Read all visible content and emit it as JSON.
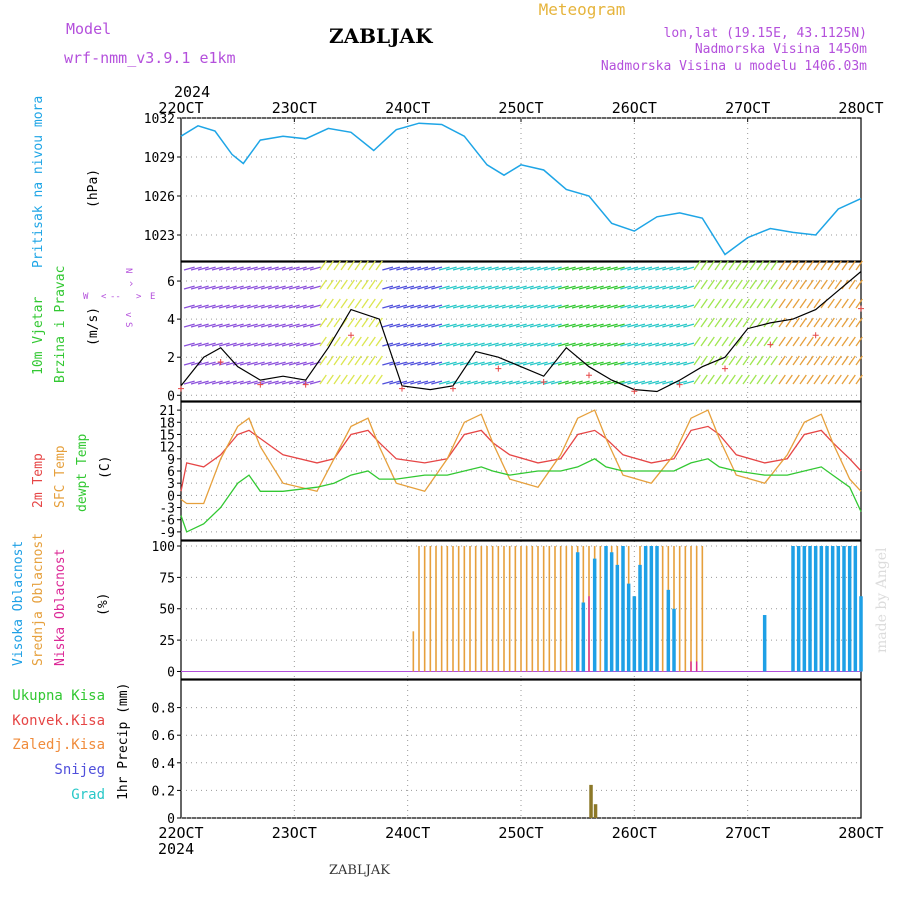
{
  "header": {
    "model_label": "Model",
    "model_name": "wrf-nmm_v3.9.1  e1km",
    "station_title": "ZABLJAK",
    "meteogram_label": "Meteogram",
    "coords": "lon,lat (19.15E, 43.1125N)",
    "altitude": "Nadmorska Visina 1450m",
    "model_altitude": "Nadmorska Visina u modelu 1406.03m",
    "bottom_station": "ZABLJAK",
    "watermark": "made by Angel"
  },
  "time_axis": {
    "year": "2024",
    "labels": [
      "22OCT",
      "23OCT",
      "24OCT",
      "25OCT",
      "26OCT",
      "27OCT",
      "28OCT"
    ]
  },
  "colors": {
    "pressure": "#1ea5e6",
    "temp2m": "#e64646",
    "sfc_temp": "#e6a03c",
    "dewpt": "#32c832",
    "high_cloud": "#1ea0e6",
    "mid_cloud": "#e6a03c",
    "low_cloud": "#dc2896",
    "total_precip": "#32c832",
    "conv_precip": "#e64646",
    "frozen_precip": "#f08c3c",
    "snow": "#5050dc",
    "hail": "#28c8c8",
    "precip_bar": "#8c7828",
    "wind_line": "#000000",
    "gust_mark": "#e64646",
    "compass": "#b450dc"
  },
  "chart_data": [
    {
      "id": "pressure",
      "type": "line",
      "ylabel": "(hPa)",
      "side_label": "Pritisak na nivou mora",
      "ylim": [
        1021,
        1032
      ],
      "yticks": [
        1023,
        1026,
        1029,
        1032
      ],
      "x": [
        22.0,
        22.15,
        22.3,
        22.45,
        22.55,
        22.7,
        22.9,
        23.1,
        23.3,
        23.5,
        23.7,
        23.9,
        24.1,
        24.3,
        24.5,
        24.7,
        24.85,
        25.0,
        25.2,
        25.4,
        25.6,
        25.8,
        26.0,
        26.2,
        26.4,
        26.6,
        26.8,
        27.0,
        27.2,
        27.4,
        27.6,
        27.8,
        28.0
      ],
      "values": [
        1030.6,
        1031.4,
        1031.0,
        1029.2,
        1028.5,
        1030.3,
        1030.6,
        1030.4,
        1031.2,
        1030.9,
        1029.5,
        1031.1,
        1031.6,
        1031.5,
        1030.6,
        1028.4,
        1027.6,
        1028.4,
        1028.0,
        1026.5,
        1026.0,
        1023.9,
        1023.3,
        1024.4,
        1024.7,
        1024.3,
        1021.5,
        1022.8,
        1023.5,
        1023.2,
        1023.0,
        1025.0,
        1025.8
      ]
    },
    {
      "id": "wind",
      "type": "line",
      "ylabel": "(m/s)",
      "side_label_1": "10m Vjetar",
      "side_label_2": "Brzina i Pravac",
      "compass": {
        "n": "N",
        "e": "E",
        "w": "W",
        "s": "S",
        "arrow_n": "^",
        "arrow_s": "v",
        "arrow_w": "<",
        "arrow_e": ">",
        "dash": "--"
      },
      "ylim": [
        -0.3,
        7
      ],
      "yticks": [
        0,
        2,
        4,
        6
      ],
      "x": [
        22.0,
        22.2,
        22.35,
        22.5,
        22.7,
        22.9,
        23.1,
        23.3,
        23.5,
        23.75,
        23.95,
        24.2,
        24.4,
        24.6,
        24.8,
        25.0,
        25.2,
        25.4,
        25.6,
        25.8,
        26.0,
        26.2,
        26.4,
        26.6,
        26.8,
        27.0,
        27.2,
        27.4,
        27.6,
        27.8,
        28.0
      ],
      "values": [
        0.5,
        2.0,
        2.5,
        1.5,
        0.8,
        1.0,
        0.8,
        2.5,
        4.5,
        4.0,
        0.5,
        0.3,
        0.5,
        2.3,
        2.0,
        1.5,
        1.0,
        2.5,
        1.5,
        0.8,
        0.3,
        0.2,
        0.8,
        1.5,
        2.0,
        3.5,
        3.8,
        4.0,
        4.5,
        5.5,
        6.5
      ],
      "direction_bands": [
        {
          "from": 22.0,
          "to": 23.2,
          "color": "#8c50dc"
        },
        {
          "from": 23.2,
          "to": 23.75,
          "color": "#dce650"
        },
        {
          "from": 23.75,
          "to": 24.25,
          "color": "#5050dc"
        },
        {
          "from": 24.25,
          "to": 25.3,
          "color": "#28c8c8"
        },
        {
          "from": 25.3,
          "to": 25.85,
          "color": "#32c832"
        },
        {
          "from": 25.85,
          "to": 26.5,
          "color": "#28c8c8"
        },
        {
          "from": 26.5,
          "to": 27.25,
          "color": "#a0e650"
        },
        {
          "from": 27.25,
          "to": 28.0,
          "color": "#e6a03c"
        }
      ]
    },
    {
      "id": "temperature",
      "type": "line",
      "ylabel": "(C)",
      "side_label_1": "2m Temp",
      "side_label_2": "SFC Temp",
      "side_label_3": "dewpt Temp",
      "ylim": [
        -11,
        23
      ],
      "yticks": [
        -9,
        -6,
        -3,
        0,
        3,
        6,
        9,
        12,
        15,
        18,
        21
      ],
      "x": [
        22.0,
        22.05,
        22.2,
        22.35,
        22.5,
        22.6,
        22.7,
        22.9,
        23.2,
        23.35,
        23.5,
        23.65,
        23.75,
        23.9,
        24.15,
        24.35,
        24.5,
        24.65,
        24.75,
        24.9,
        25.15,
        25.35,
        25.5,
        25.65,
        25.75,
        25.9,
        26.15,
        26.35,
        26.5,
        26.65,
        26.75,
        26.9,
        27.15,
        27.35,
        27.5,
        27.65,
        27.75,
        27.9,
        28.0
      ],
      "series": [
        {
          "name": "2m Temp",
          "values": [
            1,
            8,
            7,
            10,
            15,
            16,
            14,
            10,
            8,
            9,
            15,
            16,
            13,
            9,
            8,
            9,
            15,
            16,
            13,
            10,
            8,
            9,
            15,
            16,
            14,
            10,
            8,
            9,
            16,
            17,
            15,
            10,
            8,
            9,
            15,
            16,
            13,
            9,
            6
          ]
        },
        {
          "name": "SFC Temp",
          "values": [
            -1,
            -2,
            -2,
            9,
            17,
            19,
            12,
            3,
            1,
            9,
            17,
            19,
            12,
            3,
            1,
            9,
            18,
            20,
            13,
            4,
            2,
            10,
            19,
            21,
            14,
            5,
            3,
            10,
            19,
            21,
            14,
            5,
            3,
            10,
            18,
            20,
            13,
            4,
            1
          ]
        },
        {
          "name": "dewpt Temp",
          "values": [
            -5,
            -9,
            -7,
            -3,
            3,
            5,
            1,
            1,
            2,
            3,
            5,
            6,
            4,
            4,
            5,
            5,
            6,
            7,
            6,
            5,
            6,
            6,
            7,
            9,
            7,
            6,
            6,
            6,
            8,
            9,
            7,
            6,
            5,
            5,
            6,
            7,
            5,
            2,
            -4
          ]
        }
      ]
    },
    {
      "id": "clouds",
      "type": "bar",
      "ylabel": "(%)",
      "side_label_1": "Visoka Oblacnost",
      "side_label_2": "Srednja Oblacnost",
      "side_label_3": "Niska Oblacnost",
      "ylim": [
        -6,
        104
      ],
      "yticks": [
        0,
        25,
        50,
        75,
        100
      ],
      "series": [
        {
          "name": "Srednja Oblacnost",
          "x": [
            24.05,
            24.1,
            24.15,
            24.2,
            24.25,
            24.3,
            24.35,
            24.4,
            24.45,
            24.5,
            24.55,
            24.6,
            24.65,
            24.7,
            24.75,
            24.8,
            24.85,
            24.9,
            24.95,
            25.0,
            25.05,
            25.1,
            25.15,
            25.2,
            25.25,
            25.3,
            25.35,
            25.4,
            25.45,
            25.5,
            25.55,
            25.6,
            25.65,
            25.7,
            25.75,
            25.8,
            25.85,
            25.9,
            25.95,
            26.0,
            26.05,
            26.1,
            26.15,
            26.2,
            26.25,
            26.3,
            26.35,
            26.4,
            26.45,
            26.5,
            26.55,
            26.6
          ],
          "values": [
            32,
            100,
            100,
            100,
            100,
            100,
            100,
            100,
            100,
            100,
            100,
            100,
            100,
            100,
            100,
            100,
            100,
            100,
            100,
            100,
            100,
            100,
            100,
            100,
            100,
            100,
            100,
            100,
            100,
            100,
            100,
            100,
            100,
            100,
            100,
            100,
            100,
            100,
            100,
            60,
            100,
            55,
            100,
            80,
            100,
            100,
            100,
            100,
            100,
            100,
            100,
            100
          ]
        },
        {
          "name": "Visoka Oblacnost",
          "x": [
            25.5,
            25.55,
            25.65,
            25.75,
            25.8,
            25.85,
            25.9,
            25.95,
            26.0,
            26.05,
            26.1,
            26.15,
            26.2,
            26.3,
            26.35,
            27.15,
            27.4,
            27.45,
            27.5,
            27.55,
            27.6,
            27.65,
            27.7,
            27.75,
            27.8,
            27.85,
            27.9,
            27.95,
            28.0
          ],
          "values": [
            95,
            55,
            90,
            100,
            95,
            85,
            100,
            70,
            60,
            85,
            100,
            100,
            100,
            65,
            50,
            45,
            100,
            100,
            100,
            100,
            100,
            100,
            100,
            100,
            100,
            100,
            100,
            100,
            60
          ]
        },
        {
          "name": "Niska Oblacnost",
          "x": [
            25.6,
            26.5,
            26.55
          ],
          "values": [
            60,
            8,
            8
          ]
        }
      ]
    },
    {
      "id": "precip",
      "type": "bar",
      "ylabel": "1hr Precip (mm)",
      "side_label_1": "Ukupna Kisa",
      "side_label_2": "Konvek.Kisa",
      "side_label_3": "Zaledj.Kisa",
      "side_label_4": "Snijeg",
      "side_label_5": "Grad",
      "ylim": [
        0,
        1.0
      ],
      "yticks": [
        0,
        0.2,
        0.4,
        0.6,
        0.8
      ],
      "x": [
        25.62,
        25.66
      ],
      "values": [
        0.24,
        0.1
      ]
    }
  ]
}
